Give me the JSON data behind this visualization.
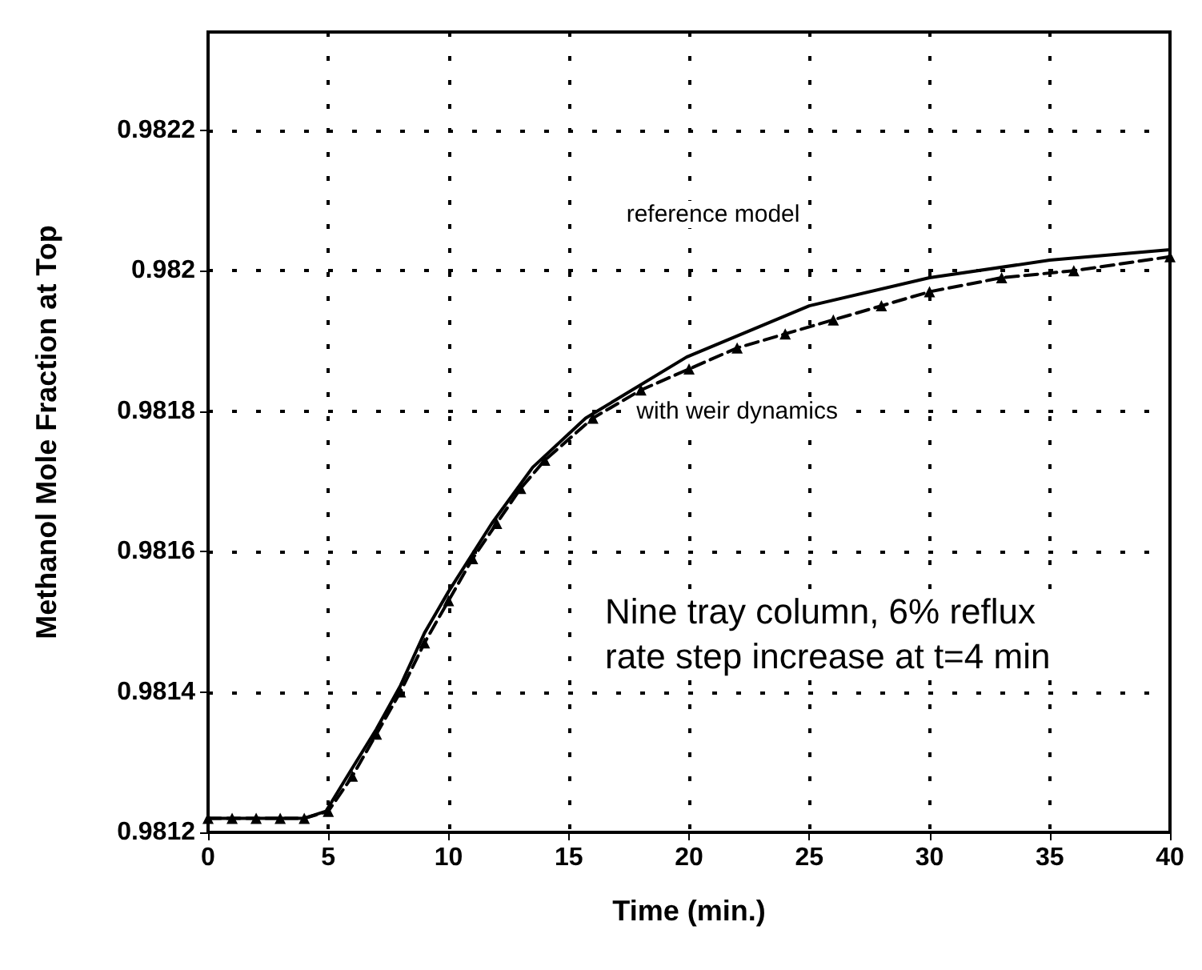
{
  "chart_data": {
    "type": "line",
    "xlabel": "Time (min.)",
    "ylabel": "Methanol Mole Fraction at Top",
    "xlim": [
      0,
      40
    ],
    "xticks": [
      0,
      5,
      10,
      15,
      20,
      25,
      30,
      35,
      40
    ],
    "ylim": [
      0.9812,
      0.98234
    ],
    "yticks": [
      0.9812,
      0.9814,
      0.9816,
      0.9818,
      0.982,
      0.9822
    ],
    "grid": true,
    "series": [
      {
        "color": "#000000",
        "line_style": "solid",
        "marker": "none",
        "x": [
          0,
          4,
          4.9,
          5.9,
          7,
          8,
          9,
          10,
          11.8,
          13.5,
          15.7,
          19.9,
          25,
          30,
          35,
          40
        ],
        "values": [
          0.98122,
          0.98122,
          0.98123,
          0.981286,
          0.981347,
          0.981409,
          0.981484,
          0.981543,
          0.98164,
          0.98172,
          0.98179,
          0.981877,
          0.98195,
          0.98199,
          0.982015,
          0.98203
        ]
      },
      {
        "color": "#000000",
        "line_style": "dashed",
        "marker": "triangle",
        "x": [
          0,
          1,
          2,
          3,
          4,
          5,
          6,
          7,
          8,
          9,
          10,
          11,
          12,
          13,
          14,
          16,
          18,
          20,
          22,
          24,
          26,
          28,
          30,
          33,
          36,
          40
        ],
        "values": [
          0.98122,
          0.98122,
          0.98122,
          0.98122,
          0.98122,
          0.98123,
          0.98128,
          0.98134,
          0.9814,
          0.98147,
          0.98153,
          0.98159,
          0.98164,
          0.98169,
          0.98173,
          0.98179,
          0.98183,
          0.98186,
          0.98189,
          0.98191,
          0.98193,
          0.98195,
          0.98197,
          0.98199,
          0.982,
          0.98202
        ]
      }
    ],
    "annotations": [
      "reference model",
      "with weir dynamics",
      "Nine tray column, 6% reflux rate step increase at t=4 min"
    ]
  }
}
